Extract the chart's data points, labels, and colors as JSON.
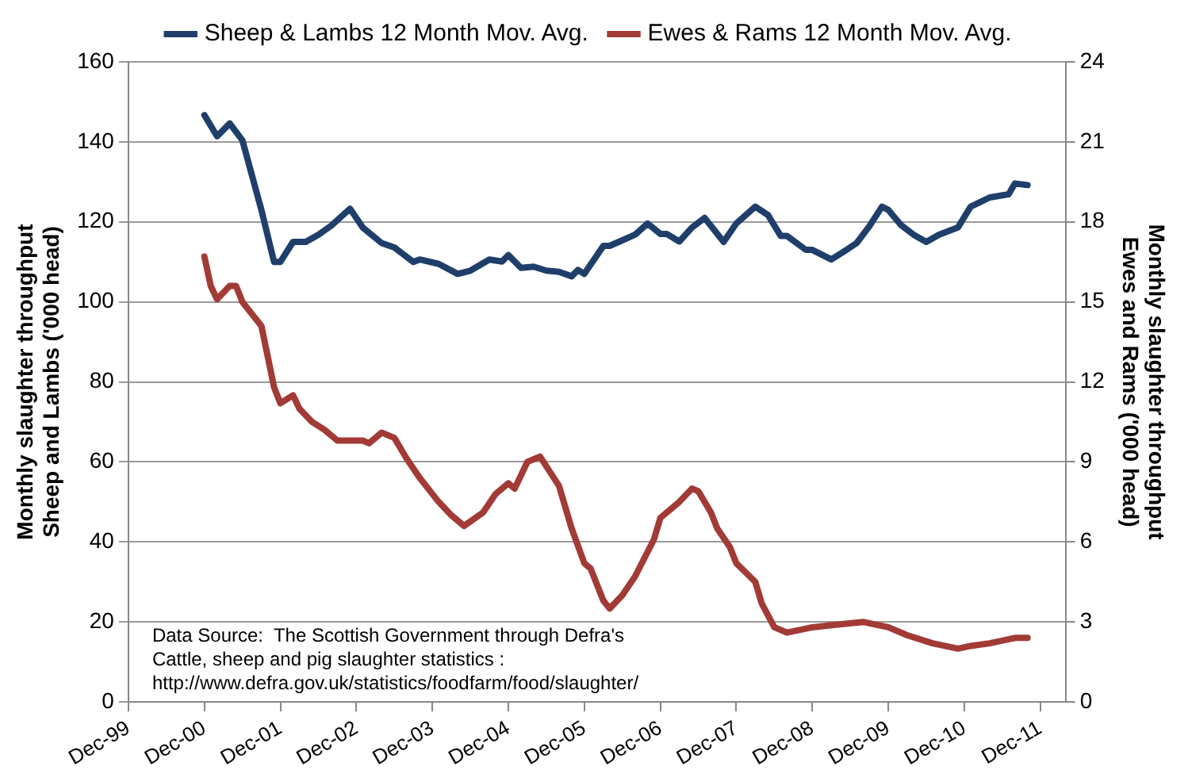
{
  "chart_data": {
    "type": "line",
    "ylabel": "Monthly slaughter throughput\nSheep and Lambs ('000 head)",
    "y2label": "Monthly slaughter throughput\nEwes and Rams ('000 head)",
    "xlim": [
      "1999-12",
      "2012-04"
    ],
    "xticks": [
      {
        "value": "1999-12",
        "label": "Dec-99"
      },
      {
        "value": "2000-12",
        "label": "Dec-00"
      },
      {
        "value": "2001-12",
        "label": "Dec-01"
      },
      {
        "value": "2002-12",
        "label": "Dec-02"
      },
      {
        "value": "2003-12",
        "label": "Dec-03"
      },
      {
        "value": "2004-12",
        "label": "Dec-04"
      },
      {
        "value": "2005-12",
        "label": "Dec-05"
      },
      {
        "value": "2006-12",
        "label": "Dec-06"
      },
      {
        "value": "2007-12",
        "label": "Dec-07"
      },
      {
        "value": "2008-12",
        "label": "Dec-08"
      },
      {
        "value": "2009-12",
        "label": "Dec-09"
      },
      {
        "value": "2010-12",
        "label": "Dec-10"
      },
      {
        "value": "2011-12",
        "label": "Dec-11"
      }
    ],
    "ylim": [
      0,
      160
    ],
    "yticks": [
      0,
      20,
      40,
      60,
      80,
      100,
      120,
      140,
      160
    ],
    "y2lim": [
      0,
      24
    ],
    "y2ticks": [
      0,
      3,
      6,
      9,
      12,
      15,
      18,
      21,
      24
    ],
    "grid": "y",
    "legend": "top",
    "marker": "none",
    "line_style": "solid",
    "annotations": [
      "Data Source:  The Scottish Government through Defra's\nCattle, sheep and pig slaughter statistics :\nhttp://www.defra.gov.uk/statistics/foodfarm/food/slaughter/"
    ],
    "series": [
      {
        "name": "Sheep & Lambs 12 Month Mov. Avg.",
        "color": "#1f3f6a",
        "x": [
          "2000-12",
          "2001-02",
          "2001-04",
          "2001-06",
          "2001-09",
          "2001-11",
          "2001-12",
          "2002-02",
          "2002-04",
          "2002-06",
          "2002-08",
          "2002-11",
          "2003-01",
          "2003-04",
          "2003-06",
          "2003-09",
          "2003-10",
          "2004-01",
          "2004-04",
          "2004-06",
          "2004-09",
          "2004-11",
          "2004-12",
          "2005-02",
          "2005-04",
          "2005-06",
          "2005-08",
          "2005-10",
          "2005-11",
          "2005-12",
          "2006-03",
          "2006-04",
          "2006-06",
          "2006-08",
          "2006-10",
          "2006-12",
          "2007-01",
          "2007-03",
          "2007-05",
          "2007-07",
          "2007-10",
          "2007-12",
          "2008-03",
          "2008-05",
          "2008-07",
          "2008-08",
          "2008-11",
          "2008-12",
          "2009-03",
          "2009-05",
          "2009-07",
          "2009-09",
          "2009-11",
          "2009-12",
          "2010-02",
          "2010-04",
          "2010-06",
          "2010-08",
          "2010-11",
          "2011-01",
          "2011-04",
          "2011-07",
          "2011-08",
          "2011-10"
        ],
        "values": [
          146.7,
          141.4,
          144.6,
          140.4,
          123,
          110,
          110,
          115,
          115,
          116.8,
          119,
          123.3,
          118.6,
          114.7,
          113.6,
          110,
          110.6,
          109.5,
          107,
          107.8,
          110.6,
          110.1,
          111.7,
          108.5,
          108.8,
          107.8,
          107.5,
          106.4,
          108,
          107,
          114,
          114,
          115.4,
          116.8,
          119.6,
          117,
          117,
          115.1,
          118.6,
          121,
          115,
          119.6,
          123.8,
          121.7,
          116.5,
          116.5,
          113,
          113,
          110.6,
          112.6,
          114.7,
          118.9,
          123.8,
          123,
          119.2,
          116.8,
          115,
          116.8,
          118.6,
          123.8,
          126.1,
          126.9,
          129.6,
          129.2
        ]
      },
      {
        "name": "Ewes & Rams 12 Month Mov. Avg.",
        "color": "#a23a36",
        "axis": "y2",
        "x": [
          "2000-12",
          "2001-01",
          "2001-02",
          "2001-04",
          "2001-05",
          "2001-06",
          "2001-09",
          "2001-11",
          "2001-12",
          "2002-02",
          "2002-03",
          "2002-05",
          "2002-07",
          "2002-09",
          "2003-01",
          "2003-02",
          "2003-04",
          "2003-06",
          "2003-08",
          "2003-10",
          "2004-01",
          "2004-03",
          "2004-05",
          "2004-08",
          "2004-10",
          "2004-12",
          "2005-01",
          "2005-03",
          "2005-05",
          "2005-08",
          "2005-10",
          "2005-12",
          "2006-01",
          "2006-03",
          "2006-04",
          "2006-06",
          "2006-08",
          "2006-11",
          "2006-12",
          "2007-03",
          "2007-05",
          "2007-06",
          "2007-08",
          "2007-09",
          "2007-11",
          "2007-12",
          "2008-03",
          "2008-04",
          "2008-06",
          "2008-08",
          "2008-12",
          "2009-04",
          "2009-08",
          "2009-12",
          "2010-03",
          "2010-07",
          "2010-11",
          "2011-01",
          "2011-04",
          "2011-08",
          "2011-10"
        ],
        "values": [
          16.7,
          15.6,
          15.1,
          15.6,
          15.6,
          15.0,
          14.1,
          11.8,
          11.2,
          11.5,
          11.0,
          10.5,
          10.2,
          9.8,
          9.8,
          9.7,
          10.1,
          9.9,
          9.1,
          8.4,
          7.5,
          7.0,
          6.6,
          7.1,
          7.8,
          8.2,
          8.0,
          9.0,
          9.2,
          8.1,
          6.5,
          5.2,
          5.0,
          3.8,
          3.5,
          4.0,
          4.7,
          6.1,
          6.9,
          7.5,
          8.0,
          7.9,
          7.1,
          6.5,
          5.8,
          5.2,
          4.5,
          3.7,
          2.8,
          2.6,
          2.8,
          2.9,
          3.0,
          2.8,
          2.5,
          2.2,
          2.0,
          2.1,
          2.2,
          2.4,
          2.4
        ]
      }
    ]
  }
}
